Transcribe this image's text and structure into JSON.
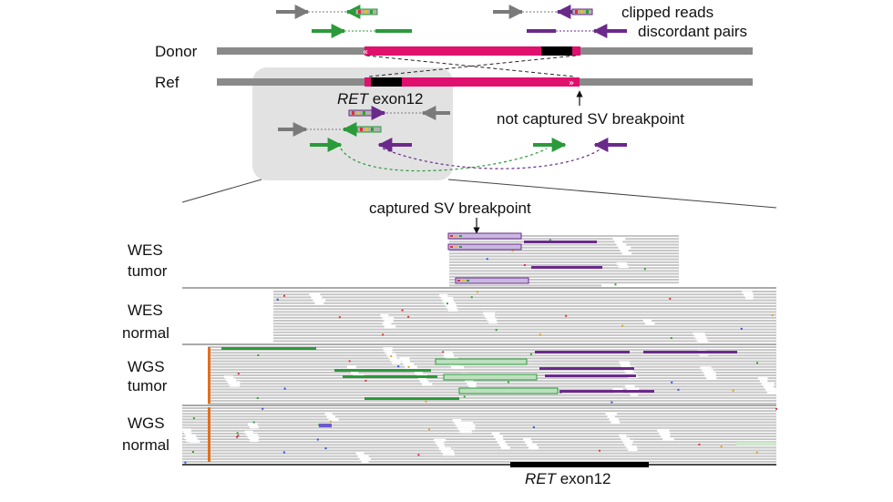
{
  "labels": {
    "clipped_reads": "clipped reads",
    "discordant_pairs": "discordant pairs",
    "donor": "Donor",
    "ref": "Ref",
    "gene_italic": "RET",
    "exon_top": " exon12",
    "not_captured": "not captured SV breakpoint",
    "captured": "captured SV breakpoint",
    "exon_bottom": " exon12"
  },
  "tracks": [
    {
      "line1": "WES",
      "line2": "tumor"
    },
    {
      "line1": "WES",
      "line2": "normal"
    },
    {
      "line1": "WGS",
      "line2": "tumor"
    },
    {
      "line1": "WGS",
      "line2": "normal"
    }
  ],
  "colors": {
    "chromosome": "#8a8a8a",
    "exon": "#e0106e",
    "breakpoint_block": "#000000",
    "clipped_read": "#7a7a7a",
    "discordant_green": "#2a9a3a",
    "discordant_purple": "#6a2a8a",
    "read_gray": "#c6c6c6",
    "zoom_box": "#e2e2e2"
  },
  "icons": {
    "arrow": "down-arrow-icon",
    "read_arrow": "right-arrow-icon"
  }
}
